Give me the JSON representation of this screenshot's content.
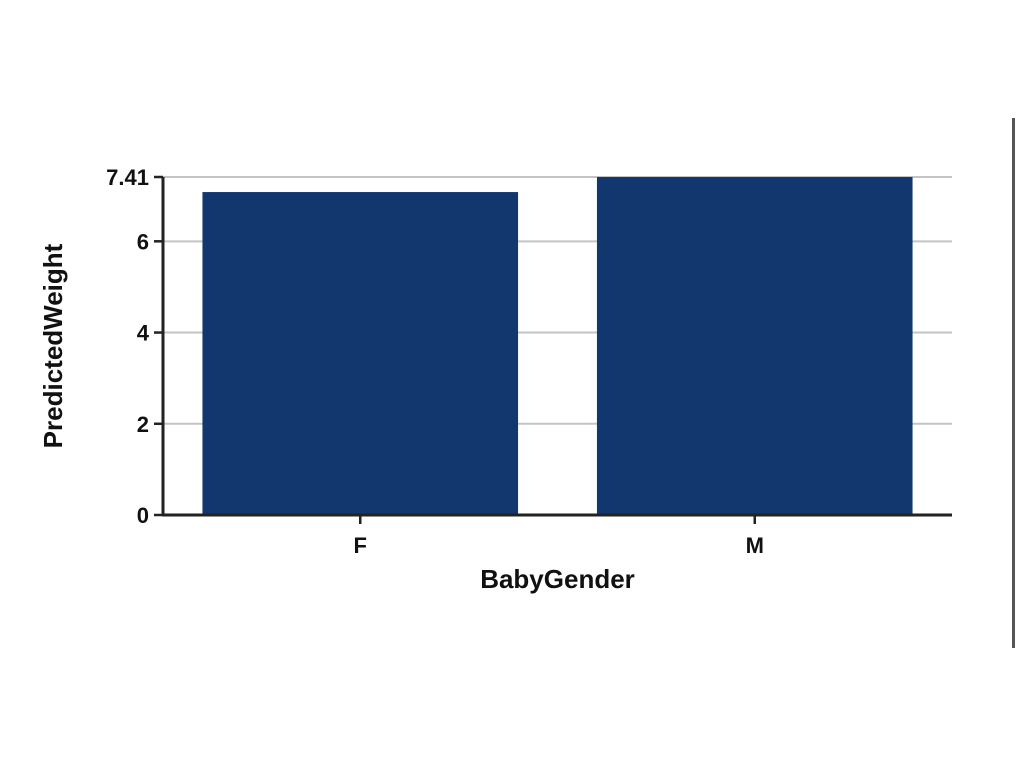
{
  "chart_data": {
    "type": "bar",
    "categories": [
      "F",
      "M"
    ],
    "values": [
      7.08,
      7.41
    ],
    "xlabel": "BabyGender",
    "ylabel": "PredictedWeight",
    "yticks": [
      0,
      2,
      4,
      6,
      7.41
    ],
    "ylim": [
      0,
      7.41
    ],
    "grid": true,
    "bar_color": "#12376e"
  }
}
